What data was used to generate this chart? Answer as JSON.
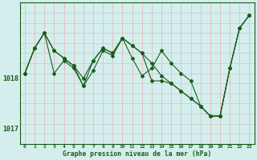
{
  "title": "Graphe pression niveau de la mer (hPa)",
  "background_color": "#d4eeed",
  "grid_color_v": "#e8b0b0",
  "grid_color_h": "#c8c8c8",
  "line_color": "#1a5c1a",
  "xlim": [
    -0.5,
    23.5
  ],
  "ylim": [
    1016.7,
    1019.5
  ],
  "yticks": [
    1017.0,
    1018.0
  ],
  "xticks": [
    0,
    1,
    2,
    3,
    4,
    5,
    6,
    7,
    8,
    9,
    10,
    11,
    12,
    13,
    14,
    15,
    16,
    17,
    18,
    19,
    20,
    21,
    22,
    23
  ],
  "series1": [
    1018.1,
    1018.6,
    1018.9,
    1018.55,
    1018.4,
    1018.25,
    1018.0,
    1018.35,
    1018.6,
    1018.5,
    1018.8,
    1018.65,
    1018.5,
    1018.3,
    1018.05,
    1017.9,
    1017.75,
    1017.6,
    1017.45,
    1017.25,
    1017.25,
    1018.2,
    1019.0,
    1019.25
  ],
  "series2": [
    1018.1,
    1018.6,
    1018.9,
    1018.1,
    1018.35,
    1018.2,
    1017.85,
    1018.15,
    1018.55,
    1018.45,
    1018.8,
    1018.4,
    1018.05,
    1018.2,
    1018.55,
    1018.3,
    1018.1,
    1017.95,
    1017.45,
    1017.25,
    1017.25,
    1018.2,
    1019.0,
    1019.25
  ],
  "series3": [
    1018.1,
    1018.6,
    1018.9,
    1018.55,
    1018.4,
    1018.25,
    1017.85,
    1018.35,
    1018.6,
    1018.5,
    1018.8,
    1018.65,
    1018.5,
    1017.95,
    1017.95,
    1017.9,
    1017.75,
    1017.6,
    1017.45,
    1017.25,
    1017.25,
    1018.2,
    1019.0,
    1019.25
  ]
}
